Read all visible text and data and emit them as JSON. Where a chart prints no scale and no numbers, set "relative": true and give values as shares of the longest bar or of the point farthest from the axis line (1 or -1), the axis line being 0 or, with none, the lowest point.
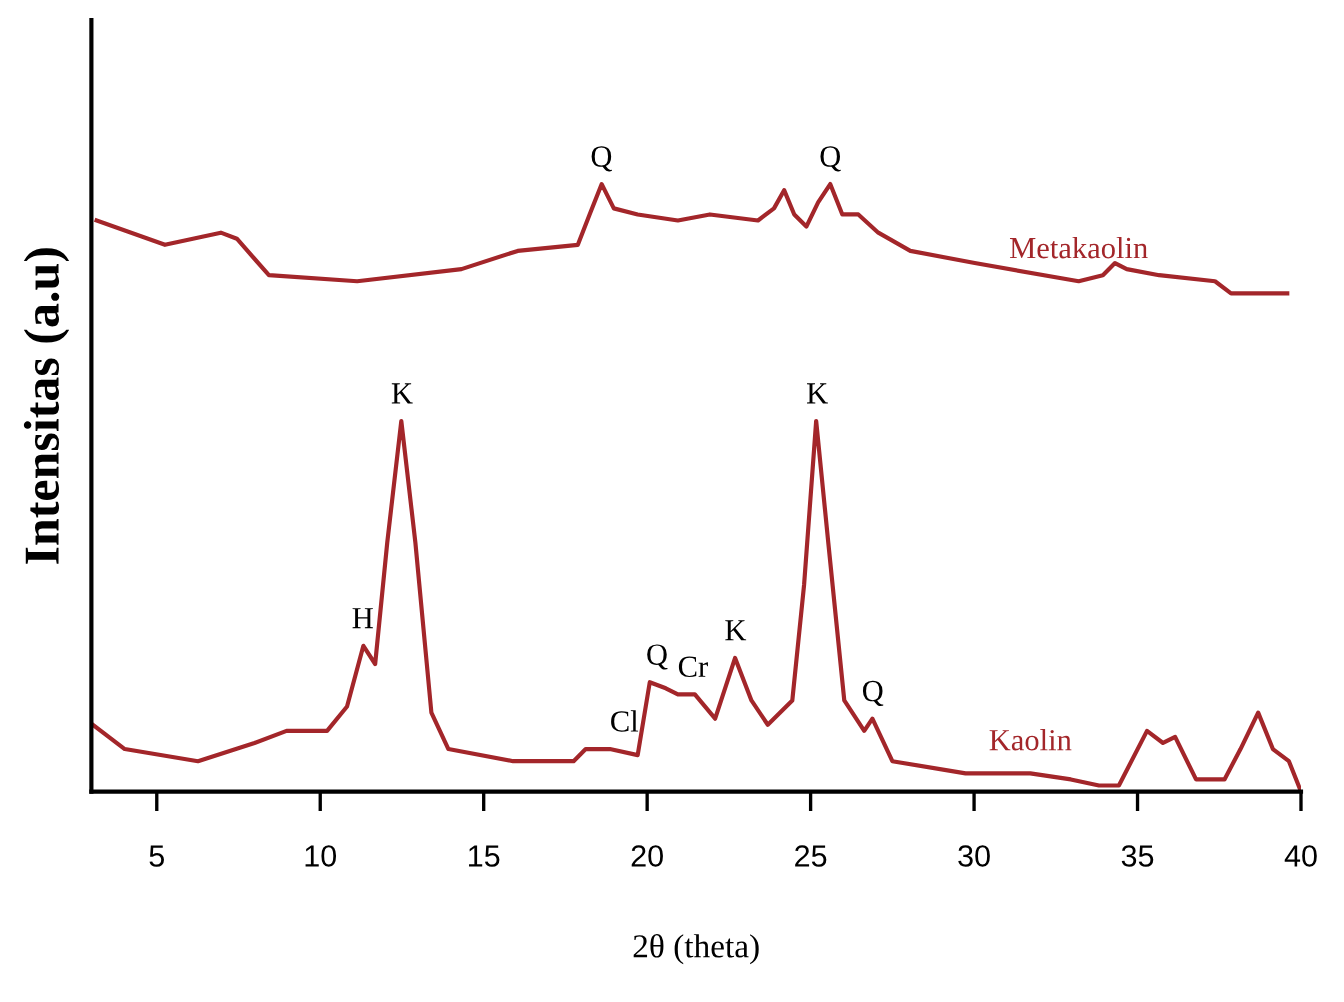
{
  "chart_data": {
    "type": "line",
    "relative": true,
    "xlabel": "2θ (theta)",
    "ylabel": "Intensitas (a.u)",
    "xlim": [
      3,
      40
    ],
    "xticks": [
      5,
      10,
      15,
      20,
      25,
      30,
      35,
      40
    ],
    "grid": false,
    "legend": false,
    "marker": "none",
    "line_style": "solid",
    "series": [
      {
        "name": "Metakaolin",
        "color": "#a3262a",
        "x": [
          3.16,
          5.25,
          6.96,
          7.45,
          8.43,
          11.13,
          14.32,
          16.04,
          17.88,
          18.24,
          18.61,
          18.98,
          19.71,
          20.94,
          21.92,
          23.39,
          23.88,
          24.19,
          24.5,
          24.87,
          25.23,
          25.6,
          25.97,
          26.46,
          27.07,
          28.05,
          30.02,
          33.2,
          33.94,
          34.31,
          34.67,
          35.66,
          37.37,
          37.86,
          39.58
        ],
        "values": [
          0.94,
          0.9,
          0.92,
          0.91,
          0.85,
          0.84,
          0.86,
          0.89,
          0.9,
          0.95,
          1.0,
          0.96,
          0.95,
          0.94,
          0.95,
          0.94,
          0.96,
          0.99,
          0.95,
          0.93,
          0.97,
          1.0,
          0.95,
          0.95,
          0.92,
          0.89,
          0.87,
          0.84,
          0.85,
          0.87,
          0.86,
          0.85,
          0.84,
          0.82,
          0.82
        ]
      },
      {
        "name": "Kaolin",
        "color": "#a3262a",
        "x": [
          3.04,
          4.02,
          6.26,
          7.99,
          8.97,
          10.21,
          10.82,
          11.32,
          11.68,
          12.05,
          12.48,
          12.91,
          13.4,
          13.92,
          15.9,
          17.75,
          18.12,
          18.86,
          19.71,
          20.08,
          20.57,
          20.94,
          21.46,
          22.08,
          22.69,
          23.19,
          23.69,
          24.44,
          24.8,
          25.17,
          25.54,
          26.03,
          26.64,
          26.89,
          27.5,
          29.74,
          31.72,
          32.96,
          33.82,
          34.43,
          35.29,
          35.78,
          36.15,
          36.79,
          37.66,
          38.15,
          38.69,
          39.14,
          39.63,
          40.0
        ],
        "values": [
          0.11,
          0.07,
          0.05,
          0.08,
          0.1,
          0.1,
          0.14,
          0.24,
          0.21,
          0.41,
          0.61,
          0.41,
          0.13,
          0.07,
          0.05,
          0.05,
          0.07,
          0.07,
          0.06,
          0.18,
          0.17,
          0.16,
          0.16,
          0.12,
          0.22,
          0.15,
          0.11,
          0.15,
          0.34,
          0.61,
          0.41,
          0.15,
          0.1,
          0.12,
          0.05,
          0.03,
          0.03,
          0.02,
          0.01,
          0.01,
          0.1,
          0.08,
          0.09,
          0.02,
          0.02,
          0.07,
          0.13,
          0.07,
          0.05,
          0.0
        ]
      }
    ],
    "annotations": [
      {
        "text": "Q",
        "x": 18.6,
        "y": 1.0
      },
      {
        "text": "Q",
        "x": 25.6,
        "y": 1.0
      },
      {
        "text": "H",
        "x": 11.3,
        "y": 0.24
      },
      {
        "text": "K",
        "x": 12.5,
        "y": 0.61
      },
      {
        "text": "Cl",
        "x": 19.3,
        "y": 0.07
      },
      {
        "text": "Q",
        "x": 20.3,
        "y": 0.18
      },
      {
        "text": "Cr",
        "x": 21.4,
        "y": 0.16
      },
      {
        "text": "K",
        "x": 22.7,
        "y": 0.22
      },
      {
        "text": "K",
        "x": 25.2,
        "y": 0.61
      },
      {
        "text": "Q",
        "x": 26.9,
        "y": 0.12
      }
    ]
  }
}
